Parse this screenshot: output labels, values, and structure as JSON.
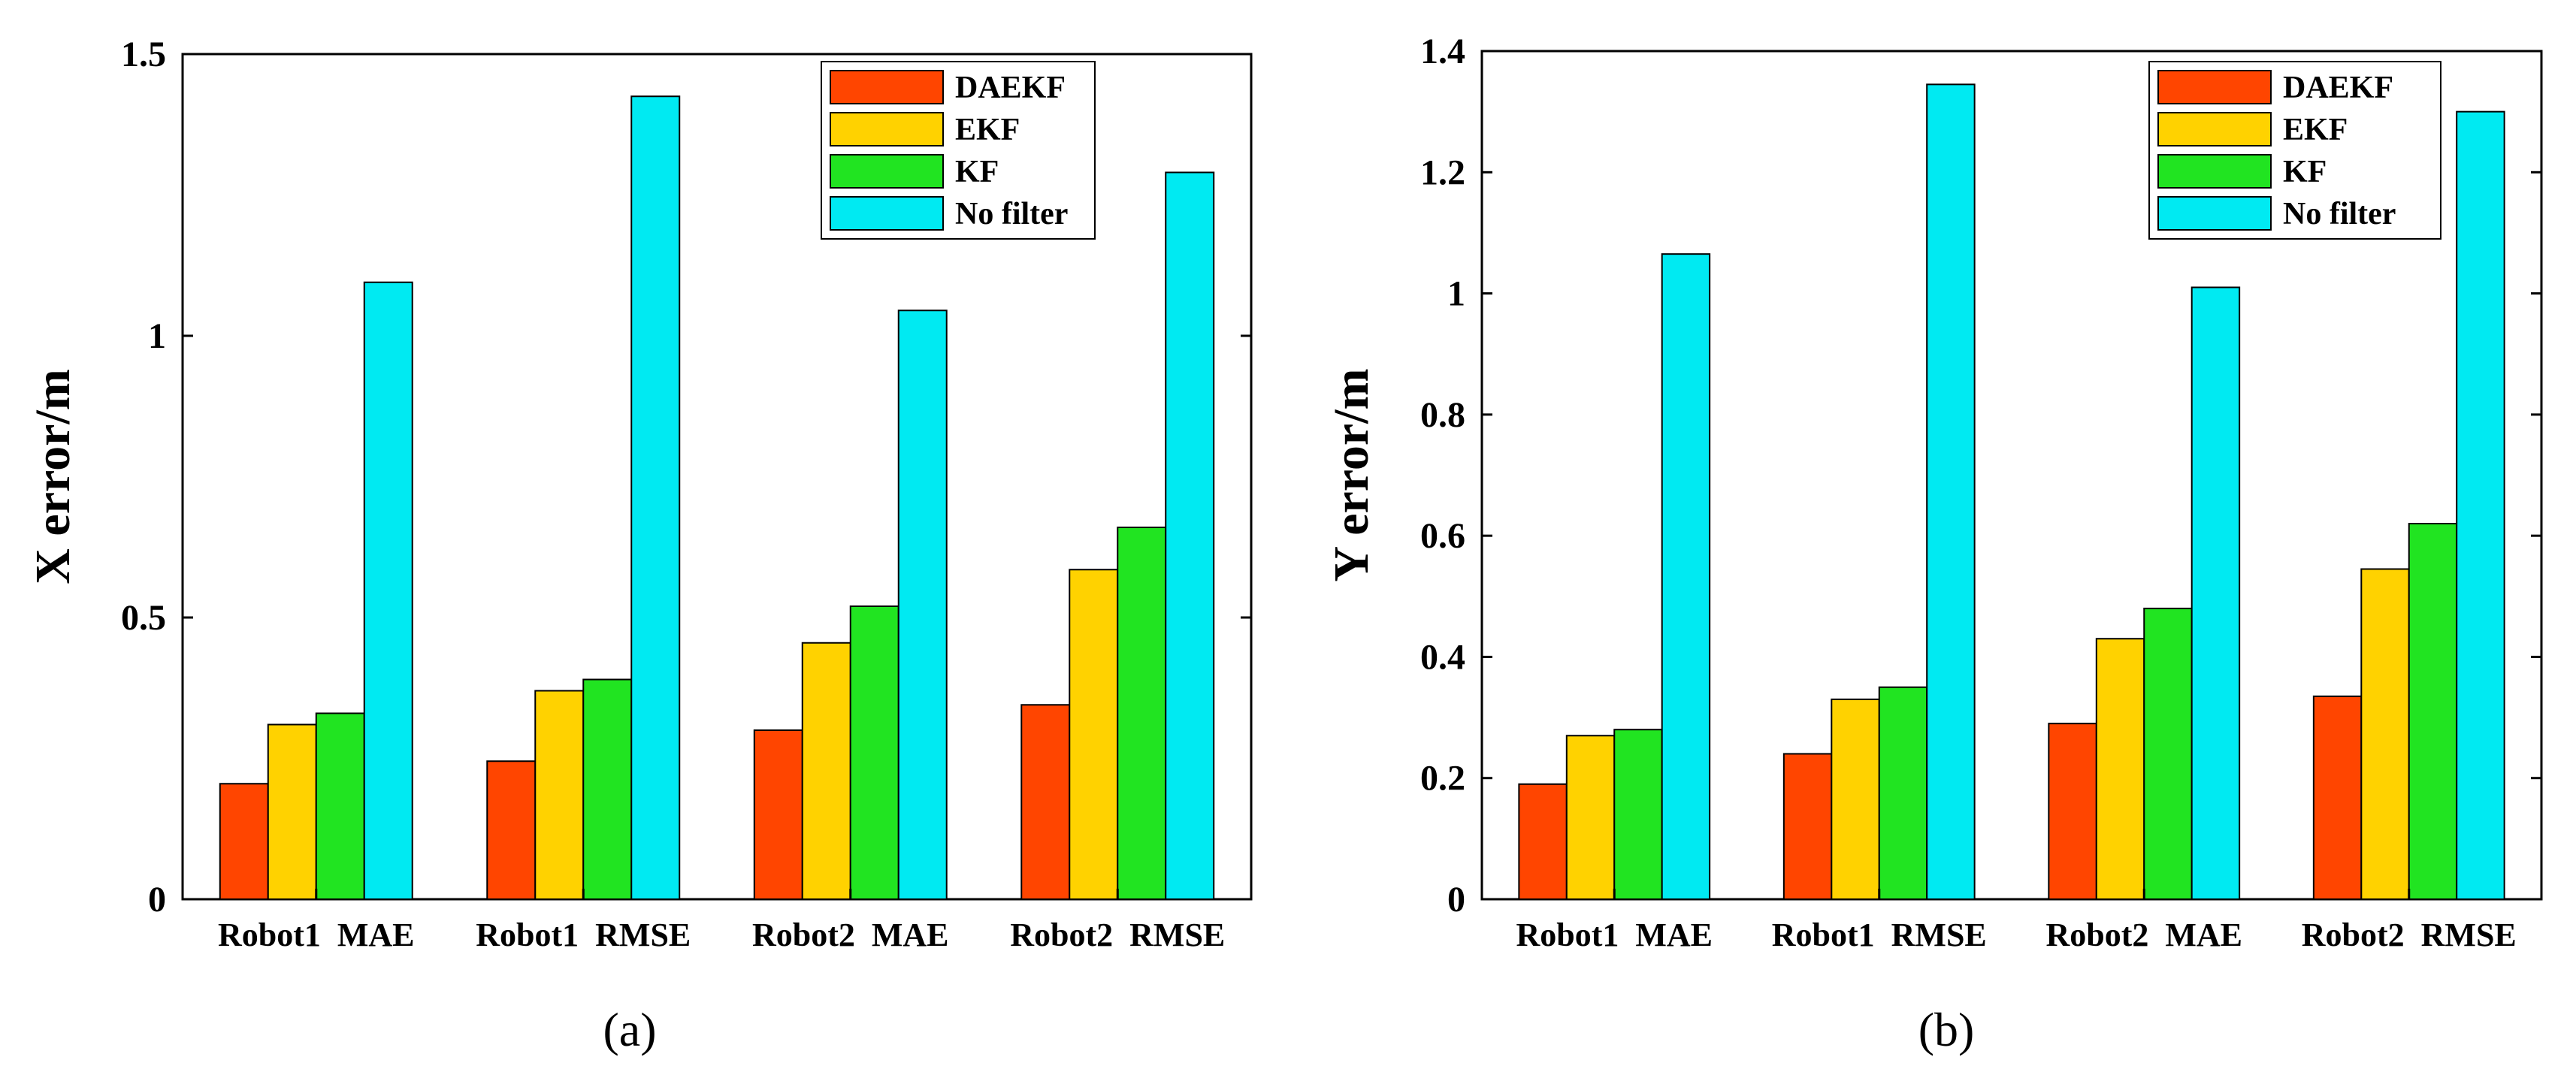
{
  "colors": {
    "DAEKF": "#ff4500",
    "EKF": "#ffd200",
    "KF": "#21e421",
    "No filter": "#00eaf2"
  },
  "chart_data": [
    {
      "type": "bar",
      "panel_label": "(a)",
      "ylabel": "X error/m",
      "xlabel": "",
      "ylim": [
        0,
        1.5
      ],
      "yticks": [
        0,
        0.5,
        1,
        1.5
      ],
      "ytick_labels": [
        "0",
        "0.5",
        "1",
        "1.5"
      ],
      "categories": [
        "Robot1  MAE",
        "Robot1  RMSE",
        "Robot2  MAE",
        "Robot2  RMSE"
      ],
      "legend_position": "top-right",
      "series": [
        {
          "name": "DAEKF",
          "values": [
            0.205,
            0.245,
            0.3,
            0.345
          ]
        },
        {
          "name": "EKF",
          "values": [
            0.31,
            0.37,
            0.455,
            0.585
          ]
        },
        {
          "name": "KF",
          "values": [
            0.33,
            0.39,
            0.52,
            0.66
          ]
        },
        {
          "name": "No filter",
          "values": [
            1.095,
            1.425,
            1.045,
            1.29
          ]
        }
      ]
    },
    {
      "type": "bar",
      "panel_label": "(b)",
      "ylabel": "Y error/m",
      "xlabel": "",
      "ylim": [
        0,
        1.4
      ],
      "yticks": [
        0,
        0.2,
        0.4,
        0.6,
        0.8,
        1,
        1.2,
        1.4
      ],
      "ytick_labels": [
        "0",
        "0.2",
        "0.4",
        "0.6",
        "0.8",
        "1",
        "1.2",
        "1.4"
      ],
      "categories": [
        "Robot1  MAE",
        "Robot1  RMSE",
        "Robot2  MAE",
        "Robot2  RMSE"
      ],
      "legend_position": "top-right",
      "series": [
        {
          "name": "DAEKF",
          "values": [
            0.19,
            0.24,
            0.29,
            0.335
          ]
        },
        {
          "name": "EKF",
          "values": [
            0.27,
            0.33,
            0.43,
            0.545
          ]
        },
        {
          "name": "KF",
          "values": [
            0.28,
            0.35,
            0.48,
            0.62
          ]
        },
        {
          "name": "No filter",
          "values": [
            1.065,
            1.345,
            1.01,
            1.3
          ]
        }
      ]
    }
  ]
}
